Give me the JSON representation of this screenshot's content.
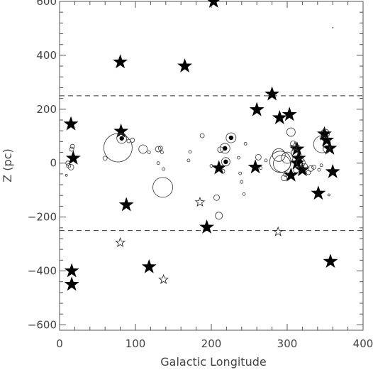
{
  "chart_data": {
    "type": "scatter",
    "title": "",
    "xlabel": "Galactic Longitude",
    "ylabel": "Z (pc)",
    "xlim": [
      0,
      400
    ],
    "ylim": [
      -620,
      600
    ],
    "xticks": [
      0,
      100,
      200,
      300,
      400
    ],
    "yticks": [
      -600,
      -400,
      -200,
      0,
      200,
      400,
      600
    ],
    "xtick_labels": [
      "0",
      "100",
      "200",
      "300",
      "400"
    ],
    "ytick_labels": [
      "−600",
      "−400",
      "−200",
      "0",
      "200",
      "400",
      "600"
    ],
    "reference_lines": [
      {
        "y": 250,
        "style": "dashed"
      },
      {
        "y": -250,
        "style": "dashed"
      }
    ],
    "series": [
      {
        "marker": "filled-star",
        "points": [
          [
            15,
            145
          ],
          [
            18,
            18
          ],
          [
            16,
            -400
          ],
          [
            16,
            -450
          ],
          [
            80,
            375
          ],
          [
            81,
            118
          ],
          [
            88,
            -155
          ],
          [
            118,
            -385
          ],
          [
            165,
            360
          ],
          [
            203,
            600
          ],
          [
            210,
            -18
          ],
          [
            194,
            -238
          ],
          [
            258,
            -15
          ],
          [
            260,
            198
          ],
          [
            280,
            256
          ],
          [
            290,
            168
          ],
          [
            303,
            180
          ],
          [
            313,
            52
          ],
          [
            313,
            0
          ],
          [
            315,
            18
          ],
          [
            305,
            -45
          ],
          [
            320,
            -25
          ],
          [
            341,
            -112
          ],
          [
            349,
            108
          ],
          [
            352,
            85
          ],
          [
            356,
            55
          ],
          [
            357,
            -365
          ],
          [
            360,
            -32
          ]
        ]
      },
      {
        "marker": "open-star",
        "points": [
          [
            80,
            -295
          ],
          [
            137,
            -432
          ],
          [
            185,
            -145
          ],
          [
            288,
            -255
          ],
          [
            310,
            60
          ]
        ]
      },
      {
        "marker": "open-circle",
        "points": [
          [
            15,
            -15,
            4
          ],
          [
            12,
            -10,
            3
          ],
          [
            17,
            62,
            3
          ],
          [
            16,
            52,
            3
          ],
          [
            11,
            0,
            3
          ],
          [
            9,
            -45,
            1.5
          ],
          [
            60,
            18,
            3
          ],
          [
            77,
            57,
            20
          ],
          [
            82,
            92,
            7
          ],
          [
            91,
            82,
            2.5
          ],
          [
            96,
            85,
            3
          ],
          [
            110,
            52,
            6
          ],
          [
            118,
            40,
            2
          ],
          [
            130,
            52,
            4
          ],
          [
            133,
            55,
            3
          ],
          [
            136,
            -90,
            14
          ],
          [
            130,
            0,
            2
          ],
          [
            137,
            -22,
            2
          ],
          [
            135,
            40,
            2
          ],
          [
            170,
            10,
            2
          ],
          [
            172,
            42,
            2
          ],
          [
            188,
            102,
            3
          ],
          [
            200,
            -10,
            2
          ],
          [
            207,
            -128,
            4
          ],
          [
            210,
            -195,
            5
          ],
          [
            212,
            50,
            4
          ],
          [
            215,
            -30,
            3
          ],
          [
            218,
            55,
            7
          ],
          [
            219,
            5,
            6
          ],
          [
            226,
            94,
            7
          ],
          [
            236,
            20,
            2
          ],
          [
            238,
            -38,
            2
          ],
          [
            240,
            -70,
            2
          ],
          [
            243,
            -115,
            2
          ],
          [
            245,
            72,
            2
          ],
          [
            262,
            22,
            4
          ],
          [
            265,
            -18,
            2
          ],
          [
            272,
            10,
            2
          ],
          [
            289,
            30,
            9
          ],
          [
            291,
            5,
            15
          ],
          [
            293,
            -2,
            12
          ],
          [
            296,
            -55,
            4
          ],
          [
            298,
            -42,
            3
          ],
          [
            300,
            20,
            8
          ],
          [
            305,
            115,
            6
          ],
          [
            308,
            72,
            4
          ],
          [
            310,
            38,
            5
          ],
          [
            312,
            -25,
            4
          ],
          [
            318,
            2,
            6
          ],
          [
            323,
            -12,
            4
          ],
          [
            328,
            -35,
            3
          ],
          [
            331,
            -20,
            4
          ],
          [
            335,
            -15,
            3
          ],
          [
            342,
            -25,
            2
          ],
          [
            345,
            -8,
            2
          ],
          [
            346,
            70,
            12
          ],
          [
            350,
            110,
            6
          ],
          [
            352,
            52,
            5
          ],
          [
            355,
            -118,
            1.5
          ]
        ]
      },
      {
        "marker": "filled-dot",
        "points": [
          [
            82,
            92
          ],
          [
            218,
            55
          ],
          [
            219,
            5
          ],
          [
            226,
            94
          ],
          [
            350,
            110
          ]
        ]
      }
    ],
    "extra_text": "."
  }
}
